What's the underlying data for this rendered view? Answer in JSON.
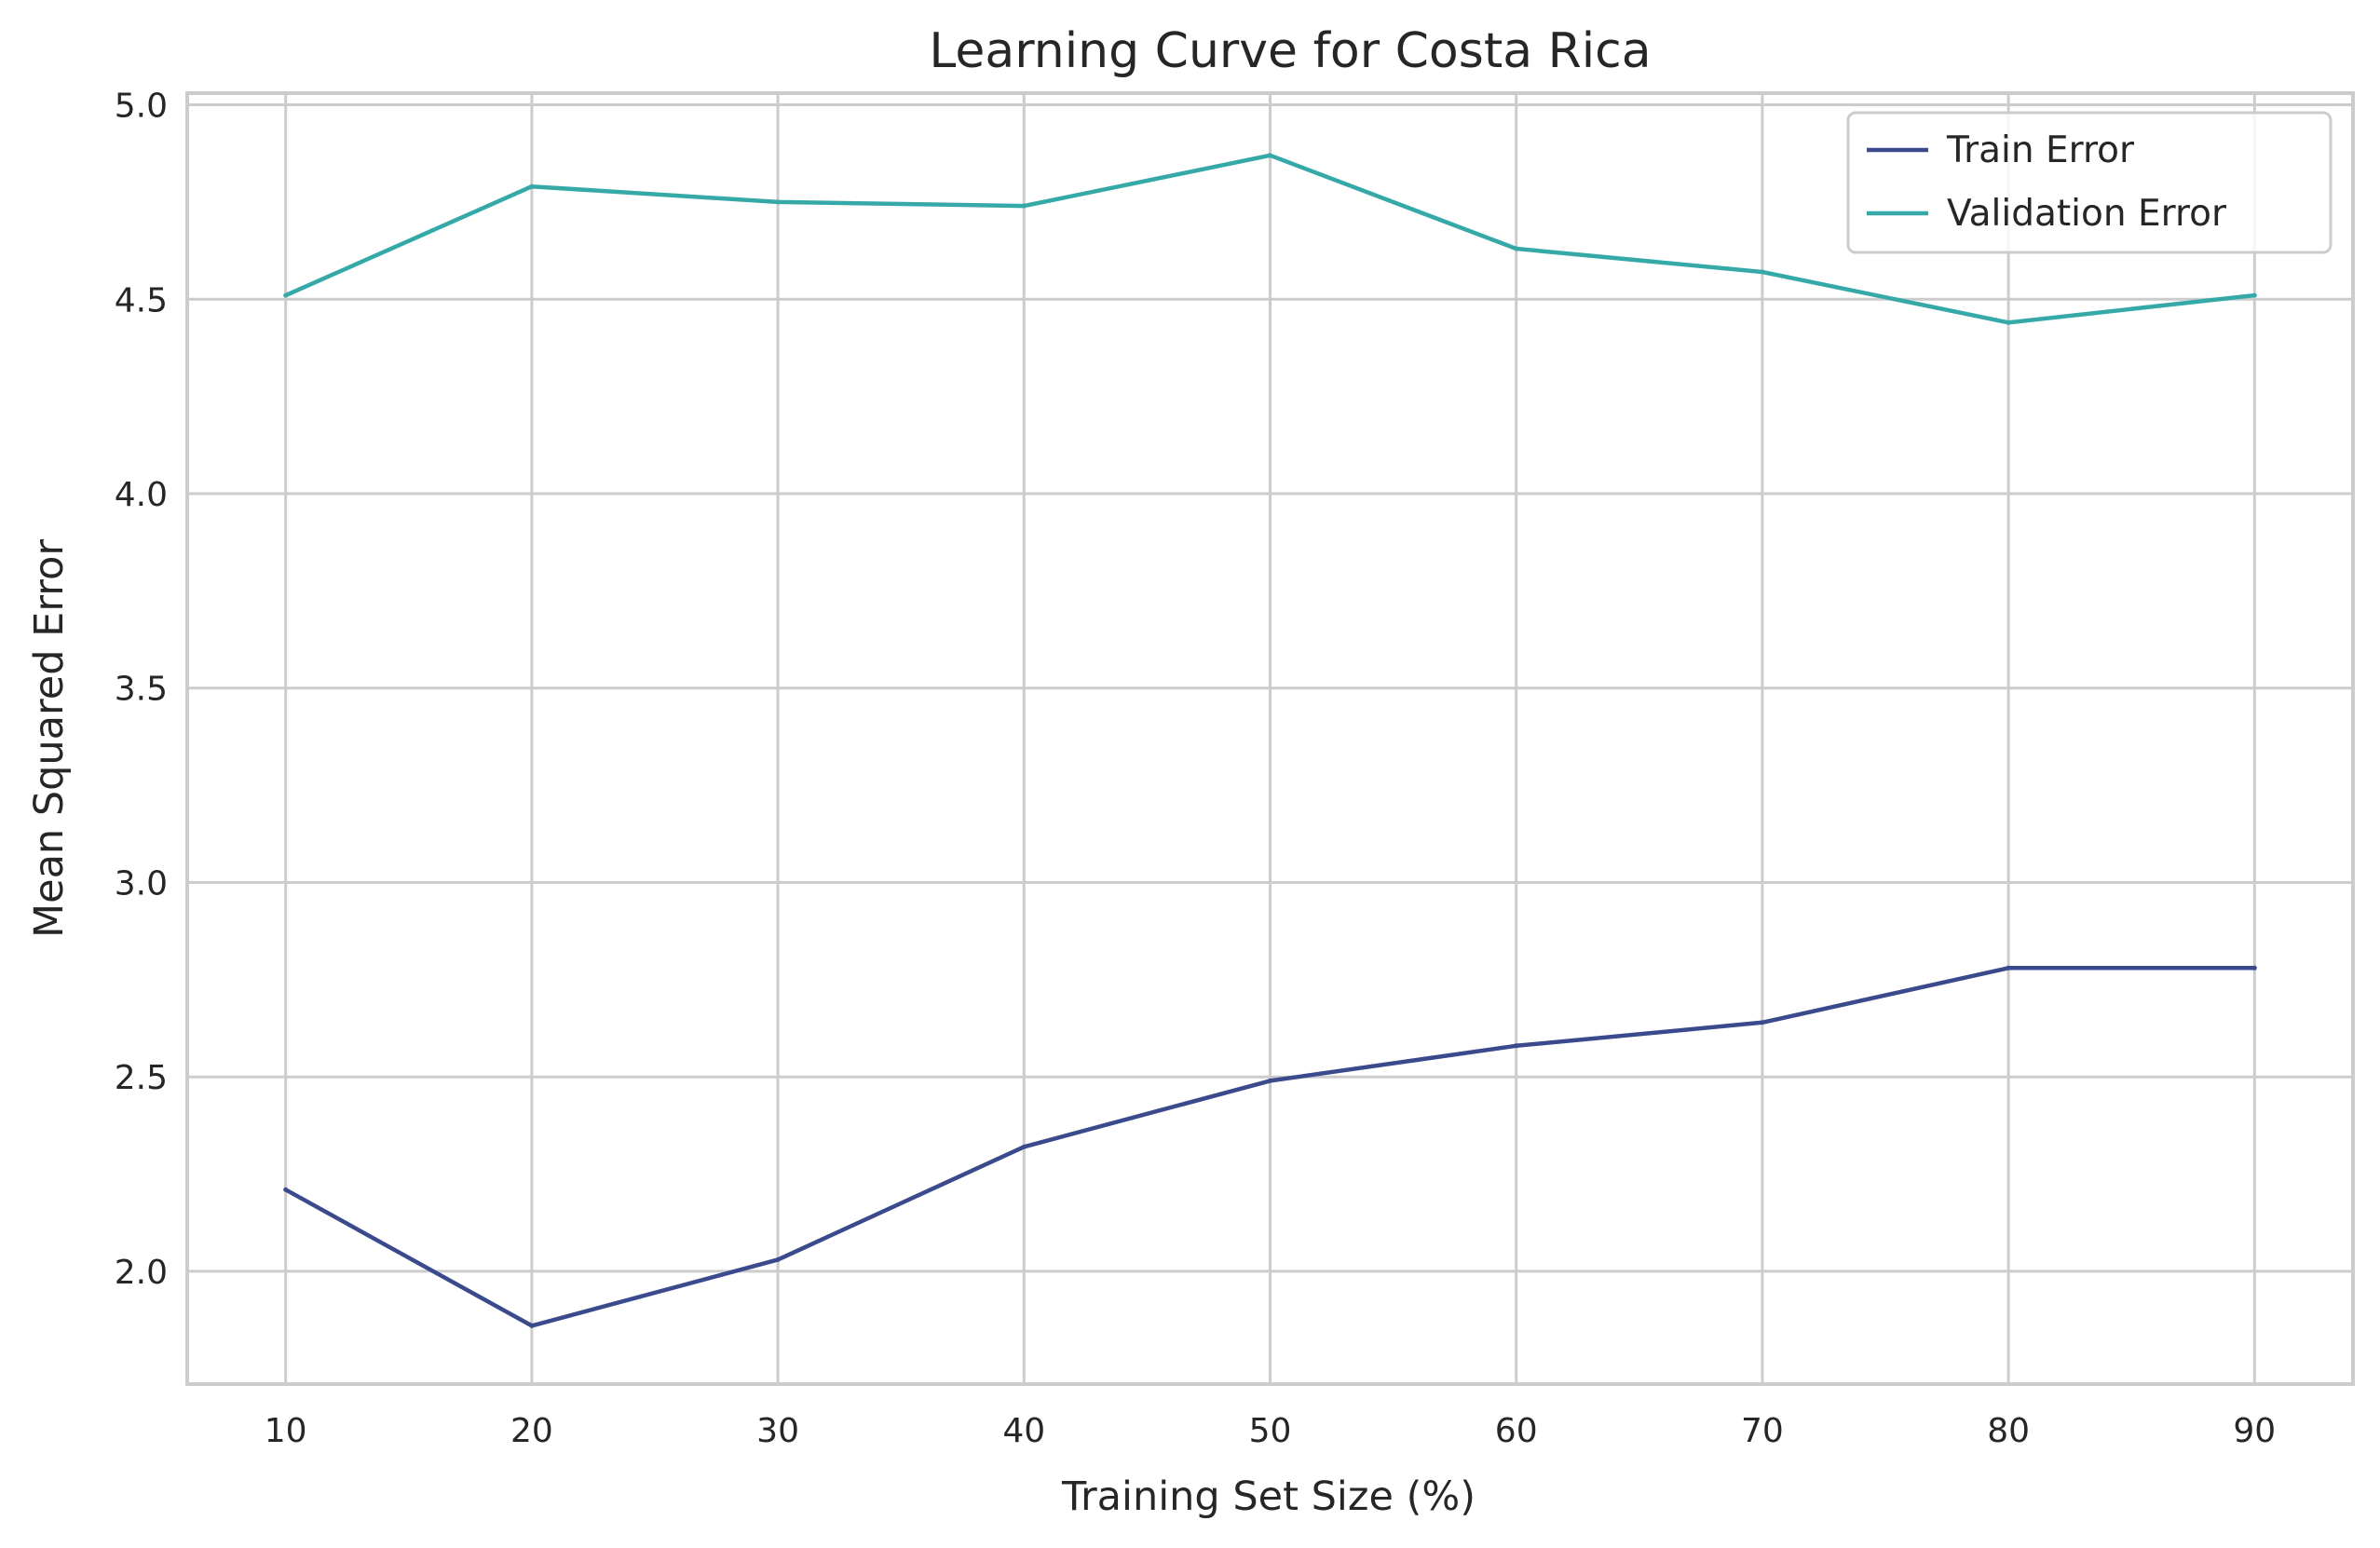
{
  "chart_data": {
    "type": "line",
    "title": "Learning Curve for Costa Rica",
    "xlabel": "Training Set Size (%)",
    "ylabel": "Mean Squared Error",
    "x": [
      10,
      20,
      30,
      40,
      50,
      60,
      70,
      80,
      90
    ],
    "x_ticks": [
      "10",
      "20",
      "30",
      "40",
      "50",
      "60",
      "70",
      "80",
      "90"
    ],
    "y_ticks": [
      "2.0",
      "2.5",
      "3.0",
      "3.5",
      "4.0",
      "4.5",
      "5.0"
    ],
    "xlim": [
      6,
      94
    ],
    "ylim": [
      1.71,
      5.03
    ],
    "grid": true,
    "legend_position": "upper right",
    "series": [
      {
        "name": "Train Error",
        "color": "#3b4a8c",
        "values": [
          2.21,
          1.86,
          2.03,
          2.32,
          2.49,
          2.58,
          2.64,
          2.78,
          2.78
        ]
      },
      {
        "name": "Validation Error",
        "color": "#35a9a8",
        "values": [
          4.51,
          4.79,
          4.75,
          4.74,
          4.87,
          4.63,
          4.57,
          4.44,
          4.51
        ]
      }
    ]
  }
}
